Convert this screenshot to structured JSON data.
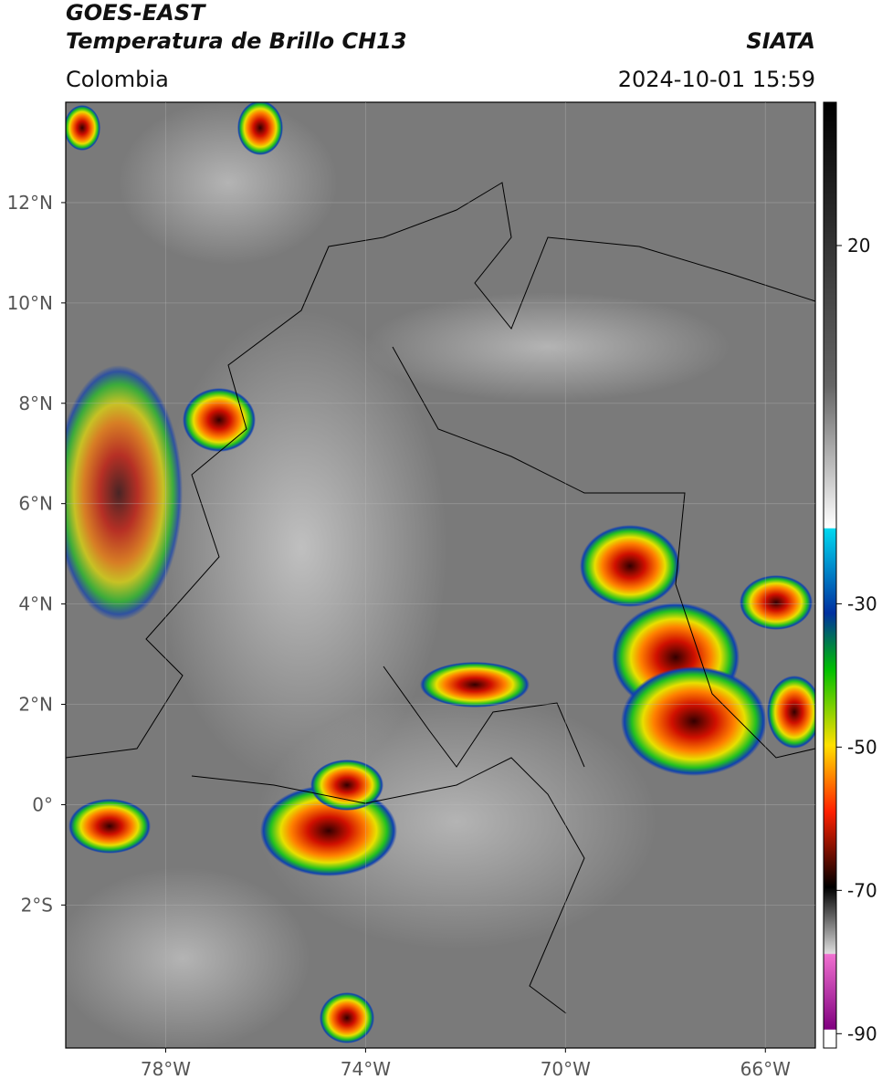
{
  "header": {
    "title_line1": "GOES-EAST",
    "title_line2": "Temperatura de Brillo CH13",
    "region": "Colombia",
    "source": "SIATA",
    "datetime": "2024-10-01 15:59"
  },
  "map": {
    "lonlim": [
      -80,
      -65
    ],
    "latlim": [
      -4.85,
      14
    ],
    "lat_ticks": [
      {
        "value": 12,
        "label": "12°N"
      },
      {
        "value": 10,
        "label": "10°N"
      },
      {
        "value": 8,
        "label": "8°N"
      },
      {
        "value": 6,
        "label": "6°N"
      },
      {
        "value": 4,
        "label": "4°N"
      },
      {
        "value": 2,
        "label": "2°N"
      },
      {
        "value": 0,
        "label": "0°"
      },
      {
        "value": -2,
        "label": "2°S"
      }
    ],
    "lon_ticks": [
      {
        "value": -78,
        "label": "78°W"
      },
      {
        "value": -74,
        "label": "74°W"
      },
      {
        "value": -70,
        "label": "70°W"
      },
      {
        "value": -66,
        "label": "66°W"
      }
    ]
  },
  "colorbar": {
    "lim": [
      -92,
      40
    ],
    "ticks": [
      20,
      -30,
      -50,
      -70,
      -90
    ]
  }
}
